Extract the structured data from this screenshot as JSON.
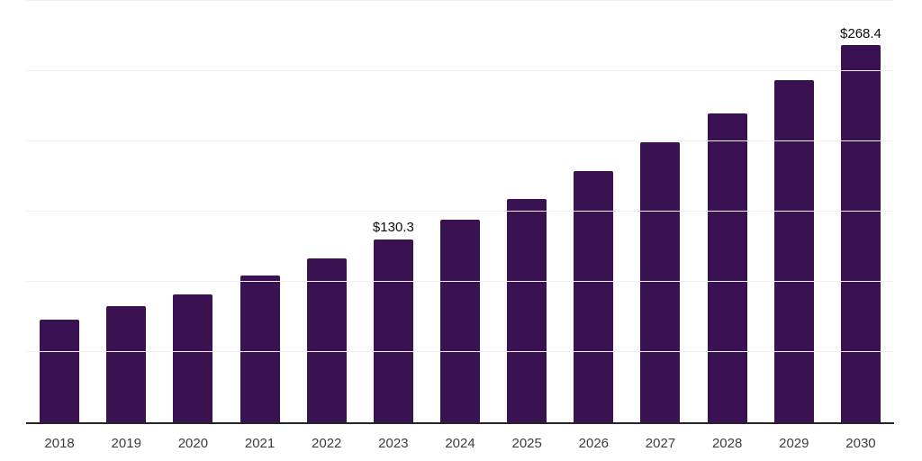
{
  "chart_data": {
    "type": "bar",
    "categories": [
      "2018",
      "2019",
      "2020",
      "2021",
      "2022",
      "2023",
      "2024",
      "2025",
      "2026",
      "2027",
      "2028",
      "2029",
      "2030"
    ],
    "values": [
      73.1,
      83.0,
      91.0,
      104.5,
      116.7,
      130.3,
      144.2,
      159.0,
      178.8,
      199.4,
      219.9,
      243.6,
      268.4
    ],
    "data_labels": [
      "",
      "",
      "",
      "",
      "",
      "$130.3",
      "",
      "",
      "",
      "",
      "",
      "",
      "$268.4"
    ],
    "ylim": [
      0,
      300
    ],
    "gridline_step": 50,
    "grid": true,
    "legend": "none",
    "y_axis_tick_labels_visible": false,
    "colors": {
      "bar": "#3A1252",
      "gridline": "#F0F0F2",
      "axis_line": "#262626",
      "tick_label": "#3D3D3D",
      "data_label": "#0A0A0A",
      "background": "#FFFFFF"
    }
  }
}
